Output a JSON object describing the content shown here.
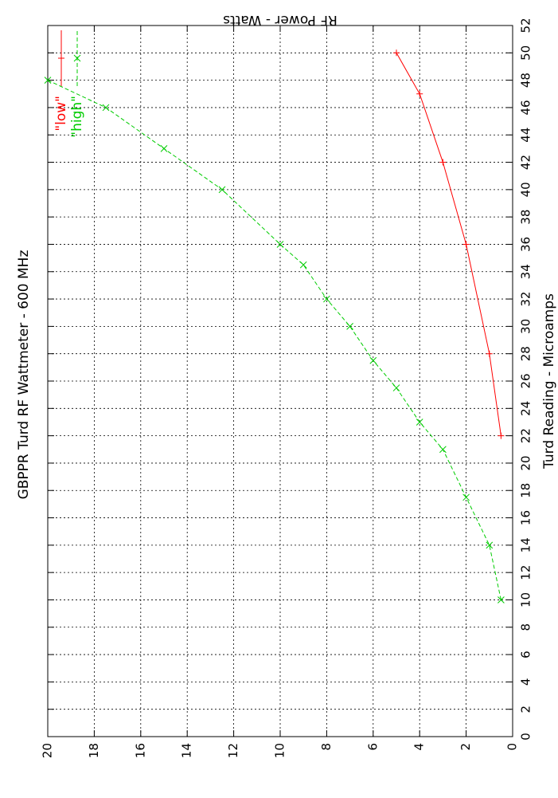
{
  "chart_data": {
    "type": "line",
    "title": "GBPPR Turd RF Wattmeter  -  600 MHz",
    "x_label": "Turd Reading  -  Microamps",
    "y_label": "RF Power  -  Watts",
    "xlim": [
      0,
      52
    ],
    "xticks": [
      0,
      2,
      4,
      6,
      8,
      10,
      12,
      14,
      16,
      18,
      20,
      22,
      24,
      26,
      28,
      30,
      32,
      34,
      36,
      38,
      40,
      42,
      44,
      46,
      48,
      50,
      52
    ],
    "ylim": [
      0,
      20
    ],
    "yticks": [
      0,
      2,
      4,
      6,
      8,
      10,
      12,
      14,
      16,
      18,
      20
    ],
    "grid": true,
    "legend": "top right",
    "rotation": -90,
    "series": [
      {
        "name": "\"low\"",
        "color": "#ff0000",
        "marker": "+",
        "dash": "solid",
        "x": [
          50,
          47,
          42,
          36,
          28,
          22
        ],
        "values": [
          5,
          4,
          3,
          2,
          1,
          0.5
        ]
      },
      {
        "name": "\"high\"",
        "color": "#00cc00",
        "marker": "x",
        "dash": "dashed",
        "x": [
          10,
          14,
          17.5,
          21,
          23,
          25.5,
          27.5,
          30,
          32,
          34.5,
          36,
          40,
          43,
          46,
          48
        ],
        "values": [
          0.5,
          1,
          2,
          3,
          4,
          5,
          6,
          7,
          8,
          9,
          10,
          12.5,
          15,
          17.5,
          20
        ]
      }
    ]
  }
}
